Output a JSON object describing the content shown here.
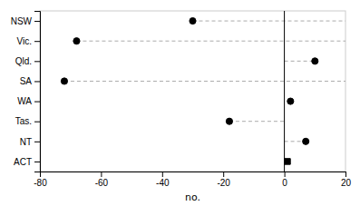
{
  "chart_data": {
    "type": "dot",
    "xlabel": "no.",
    "categories": [
      "NSW",
      "Vic.",
      "Qld.",
      "SA",
      "WA",
      "Tas.",
      "NT",
      "ACT"
    ],
    "series": [
      {
        "values": [
          -30,
          -68,
          10,
          -72,
          2,
          -18,
          7,
          null
        ],
        "marker": "circle",
        "color": "black"
      },
      {
        "values": [
          null,
          null,
          null,
          null,
          null,
          null,
          null,
          1
        ],
        "marker": "square",
        "color": "black"
      }
    ],
    "dash_start": [
      -30,
      -68,
      0,
      -72,
      null,
      -18,
      0,
      null
    ],
    "dash_end": [
      20,
      20,
      10,
      20,
      null,
      0,
      7,
      null
    ],
    "vline": 0,
    "xlim": [
      -80,
      20
    ],
    "xticks": [
      -80,
      -60,
      -40,
      -20,
      0,
      20
    ],
    "grid": false
  }
}
